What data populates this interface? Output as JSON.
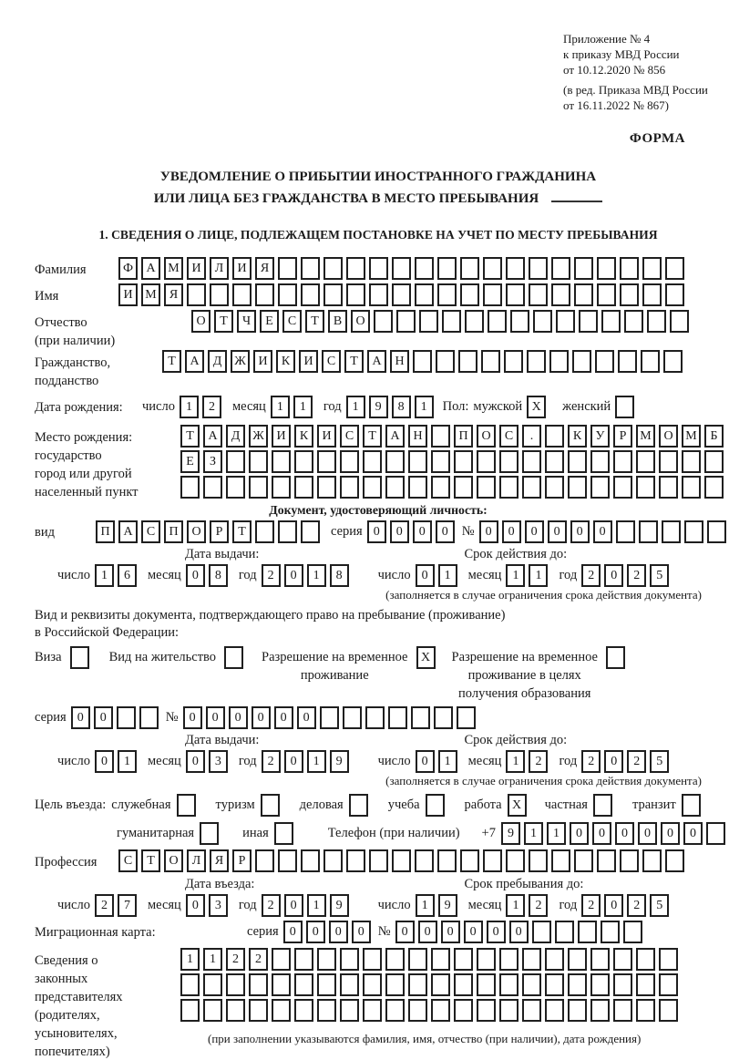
{
  "colors": {
    "ink": "#1b1b1b",
    "paper": "#ffffff"
  },
  "header": {
    "annex_lines": [
      "Приложение № 4",
      "к приказу МВД России",
      "от 10.12.2020 № 856"
    ],
    "amendment_lines": [
      "(в ред. Приказа МВД России",
      "от 16.11.2022 № 867)"
    ],
    "form_label": "ФОРМА"
  },
  "title": {
    "line1": "УВЕДОМЛЕНИЕ О ПРИБЫТИИ ИНОСТРАННОГО ГРАЖДАНИНА",
    "line2": "ИЛИ ЛИЦА БЕЗ ГРАЖДАНСТВА В МЕСТО ПРЕБЫВАНИЯ"
  },
  "section1": {
    "heading": "1. СВЕДЕНИЯ О ЛИЦЕ, ПОДЛЕЖАЩЕМ ПОСТАНОВКЕ НА УЧЕТ ПО МЕСТУ ПРЕБЫВАНИЯ"
  },
  "common": {
    "day": "число",
    "month": "месяц",
    "year": "год",
    "series": "серия",
    "number": "№",
    "issue_date": "Дата выдачи:",
    "valid_until": "Срок действия до:",
    "restriction_note": "(заполняется в случае ограничения срока действия документа)"
  },
  "person": {
    "surname": {
      "label": "Фамилия",
      "cells": {
        "t": "ФАМИЛИЯ",
        "n": 25
      }
    },
    "given_name": {
      "label": "Имя",
      "cells": {
        "t": "ИМЯ",
        "n": 25
      }
    },
    "patronymic": {
      "label_lines": [
        "Отчество",
        "(при наличии)"
      ],
      "cells": {
        "t": "ОТЧЕСТВО",
        "n": 22
      }
    },
    "citizenship": {
      "label_lines": [
        "Гражданство,",
        "подданство"
      ],
      "cells": {
        "t": "ТАДЖИКИСТАН",
        "n": 23
      }
    },
    "birth_date": {
      "label": "Дата рождения:",
      "d": {
        "t": "12",
        "n": 2
      },
      "m": {
        "t": "11",
        "n": 2
      },
      "y": {
        "t": "1981",
        "n": 4
      }
    },
    "sex": {
      "label": "Пол:",
      "male_label": "мужской",
      "male_box": {
        "t": "X",
        "n": 1
      },
      "female_label": "женский",
      "female_box": {
        "t": "",
        "n": 1
      }
    },
    "birthplace": {
      "label_lines": [
        "Место рождения:",
        "государство",
        "город или другой",
        "населенный пункт"
      ],
      "row1": {
        "t": "ТАДЖИКИСТАН ПОС. КУРМОМБ",
        "n": 24
      },
      "row2": {
        "t": "ЕЗ",
        "n": 24
      },
      "row3": {
        "t": "",
        "n": 24
      }
    }
  },
  "identity_doc": {
    "heading": "Документ, удостоверяющий личность:",
    "kind_label": "вид",
    "kind": {
      "t": "ПАСПОРТ",
      "n": 10
    },
    "series": {
      "t": "0000",
      "n": 4
    },
    "number": {
      "t": "000000",
      "n": 11
    },
    "issue": {
      "d": {
        "t": "16",
        "n": 2
      },
      "m": {
        "t": "08",
        "n": 2
      },
      "y": {
        "t": "2018",
        "n": 4
      }
    },
    "valid": {
      "d": {
        "t": "01",
        "n": 2
      },
      "m": {
        "t": "11",
        "n": 2
      },
      "y": {
        "t": "2025",
        "n": 4
      }
    }
  },
  "residence_doc": {
    "line1": "Вид и реквизиты документа, подтверждающего право на пребывание (проживание)",
    "line2": "в Российской Федерации:",
    "visa": {
      "label": "Виза",
      "box": {
        "t": "",
        "n": 1
      }
    },
    "residence_permit": {
      "label": "Вид на жительство",
      "box": {
        "t": "",
        "n": 1
      }
    },
    "temp_residence": {
      "lines": [
        "Разрешение на временное",
        "проживание"
      ],
      "box": {
        "t": "X",
        "n": 1
      }
    },
    "temp_residence_education": {
      "lines": [
        "Разрешение на временное",
        "проживание в целях",
        "получения образования"
      ],
      "box": {
        "t": "",
        "n": 1
      }
    },
    "series": {
      "t": "00",
      "n": 4
    },
    "number": {
      "t": "000000",
      "n": 13
    },
    "issue": {
      "d": {
        "t": "01",
        "n": 2
      },
      "m": {
        "t": "03",
        "n": 2
      },
      "y": {
        "t": "2019",
        "n": 4
      }
    },
    "valid": {
      "d": {
        "t": "01",
        "n": 2
      },
      "m": {
        "t": "12",
        "n": 2
      },
      "y": {
        "t": "2025",
        "n": 4
      }
    }
  },
  "visit": {
    "purpose_label": "Цель въезда:",
    "row1": [
      {
        "label": "служебная",
        "box": {
          "t": "",
          "n": 1
        }
      },
      {
        "label": "туризм",
        "box": {
          "t": "",
          "n": 1
        }
      },
      {
        "label": "деловая",
        "box": {
          "t": "",
          "n": 1
        }
      },
      {
        "label": "учеба",
        "box": {
          "t": "",
          "n": 1
        }
      },
      {
        "label": "работа",
        "box": {
          "t": "X",
          "n": 1
        }
      },
      {
        "label": "частная",
        "box": {
          "t": "",
          "n": 1
        }
      },
      {
        "label": "транзит",
        "box": {
          "t": "",
          "n": 1
        }
      }
    ],
    "row2": [
      {
        "label": "гуманитарная",
        "box": {
          "t": "",
          "n": 1
        }
      },
      {
        "label": "иная",
        "box": {
          "t": "",
          "n": 1
        }
      }
    ],
    "phone_label": "Телефон (при наличии)",
    "phone_prefix": "+7",
    "phone": {
      "t": "911000000",
      "n": 10
    },
    "profession": {
      "label": "Профессия",
      "cells": {
        "t": "СТОЛЯР",
        "n": 25
      }
    },
    "entry_date_heading": "Дата въезда:",
    "stay_until_heading": "Срок пребывания до:",
    "entry": {
      "d": {
        "t": "27",
        "n": 2
      },
      "m": {
        "t": "03",
        "n": 2
      },
      "y": {
        "t": "2019",
        "n": 4
      }
    },
    "stay": {
      "d": {
        "t": "19",
        "n": 2
      },
      "m": {
        "t": "12",
        "n": 2
      },
      "y": {
        "t": "2025",
        "n": 4
      }
    }
  },
  "migration_card": {
    "label": "Миграционная карта:",
    "series": {
      "t": "0000",
      "n": 4
    },
    "number": {
      "t": "000000",
      "n": 11
    }
  },
  "legal_reps": {
    "label_lines": [
      "Сведения о",
      "законных",
      "представителях",
      "(родителях,",
      "усыновителях,",
      "попечителях)"
    ],
    "row1": {
      "t": "1122",
      "n": 22
    },
    "row2": {
      "t": "",
      "n": 22
    },
    "row3": {
      "t": "",
      "n": 22
    },
    "note": "(при заполнении указываются фамилия, имя, отчество (при наличии), дата рождения)"
  }
}
